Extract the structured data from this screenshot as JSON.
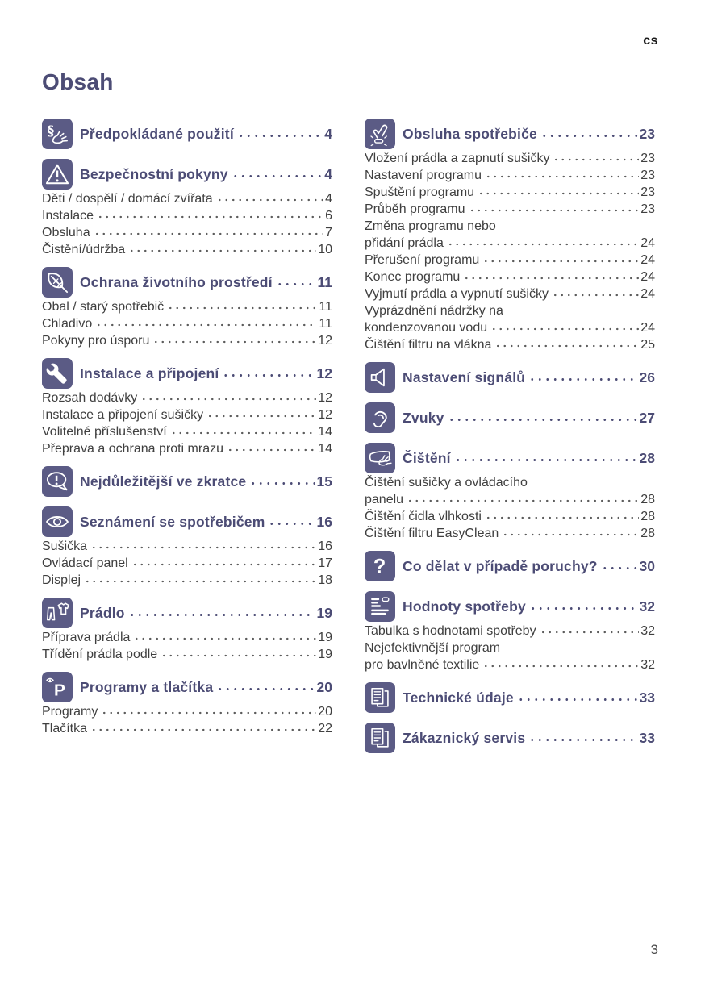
{
  "page": {
    "language_code": "cs",
    "title": "Obsah",
    "page_number": "3"
  },
  "colors": {
    "icon_background": "#5B5B85",
    "heading_text": "#4C4C75",
    "body_text": "#3F3F3F"
  },
  "columns": [
    {
      "sections": [
        {
          "icon": "intended-use-icon",
          "heading": "Předpokládané použití",
          "page": "4",
          "entries": []
        },
        {
          "icon": "safety-warning-icon",
          "heading": "Bezpečnostní pokyny",
          "page": "4",
          "entries": [
            {
              "label": "Děti / dospělí / domácí zvířata",
              "page": "4"
            },
            {
              "label": "Instalace",
              "page": "6"
            },
            {
              "label": "Obsluha",
              "page": "7"
            },
            {
              "label": "Čistění/údržba",
              "page": "10"
            }
          ]
        },
        {
          "icon": "environment-leaf-icon",
          "heading": "Ochrana životního prostředí",
          "page": "11",
          "entries": [
            {
              "label": "Obal / starý spotřebič",
              "page": "11"
            },
            {
              "label": "Chladivo",
              "page": "11"
            },
            {
              "label": "Pokyny pro úsporu",
              "page": "12"
            }
          ]
        },
        {
          "icon": "installation-wrench-icon",
          "heading": "Instalace a připojení",
          "page": "12",
          "entries": [
            {
              "label": "Rozsah dodávky",
              "page": "12"
            },
            {
              "label": "Instalace a připojení sušičky",
              "page": "12"
            },
            {
              "label": "Volitelné příslušenství",
              "page": "14"
            },
            {
              "label": "Přeprava a ochrana proti mrazu",
              "page": "14"
            }
          ]
        },
        {
          "icon": "quick-summary-icon",
          "heading": "Nejdůležitější ve zkratce",
          "page": "15",
          "entries": []
        },
        {
          "icon": "getting-to-know-eye-icon",
          "heading": "Seznámení se spotřebičem",
          "page": "16",
          "entries": [
            {
              "label": "Sušička",
              "page": "16"
            },
            {
              "label": "Ovládací panel",
              "page": "17"
            },
            {
              "label": "Displej",
              "page": "18"
            }
          ]
        },
        {
          "icon": "laundry-icon",
          "heading": "Prádlo",
          "page": "19",
          "entries": [
            {
              "label": "Příprava prádla",
              "page": "19"
            },
            {
              "label": "Třídění prádla podle",
              "page": "19"
            }
          ]
        },
        {
          "icon": "programs-buttons-icon",
          "heading": "Programy a tlačítka",
          "page": "20",
          "entries": [
            {
              "label": "Programy",
              "page": "20"
            },
            {
              "label": "Tlačítka",
              "page": "22"
            }
          ]
        }
      ]
    },
    {
      "sections": [
        {
          "icon": "operating-hand-icon",
          "heading": "Obsluha spotřebiče",
          "page": "23",
          "entries": [
            {
              "label": "Vložení prádla a zapnutí sušičky",
              "page": "23"
            },
            {
              "label": "Nastavení programu",
              "page": "23"
            },
            {
              "label": "Spuštění programu",
              "page": "23"
            },
            {
              "label": "Průběh programu",
              "page": "23"
            },
            {
              "label": "Změna programu nebo",
              "label2": "přidání prádla",
              "page": "24"
            },
            {
              "label": "Přerušení programu",
              "page": "24"
            },
            {
              "label": "Konec programu",
              "page": "24"
            },
            {
              "label": "Vyjmutí prádla a vypnutí sušičky",
              "page": "24"
            },
            {
              "label": "Vyprázdnění nádržky na",
              "label2": "kondenzovanou vodu",
              "page": "24"
            },
            {
              "label": "Čištění filtru na vlákna",
              "page": "25"
            }
          ]
        },
        {
          "icon": "signal-speaker-icon",
          "heading": "Nastavení signálů",
          "page": "26",
          "entries": []
        },
        {
          "icon": "sounds-ear-icon",
          "heading": "Zvuky",
          "page": "27",
          "entries": []
        },
        {
          "icon": "cleaning-icon",
          "heading": "Čištění",
          "page": "28",
          "entries": [
            {
              "label": "Čištění sušičky a ovládacího",
              "label2": "panelu",
              "page": "28"
            },
            {
              "label": "Čištění čidla vlhkosti",
              "page": "28"
            },
            {
              "label": "Čištění filtru EasyClean",
              "page": "28"
            }
          ]
        },
        {
          "icon": "troubleshooting-question-icon",
          "heading": "Co dělat v případě poruchy?",
          "page": "30",
          "entries": []
        },
        {
          "icon": "consumption-values-icon",
          "heading": "Hodnoty spotřeby",
          "page": "32",
          "entries": [
            {
              "label": "Tabulka s hodnotami spotřeby",
              "page": "32"
            },
            {
              "label": "Nejefektivnější program",
              "label2": "pro bavlněné textilie",
              "page": "32"
            }
          ]
        },
        {
          "icon": "technical-data-document-icon",
          "heading": "Technické údaje",
          "page": "33",
          "entries": []
        },
        {
          "icon": "customer-service-document-icon",
          "heading": "Zákaznický servis",
          "page": "33",
          "entries": []
        }
      ]
    }
  ]
}
